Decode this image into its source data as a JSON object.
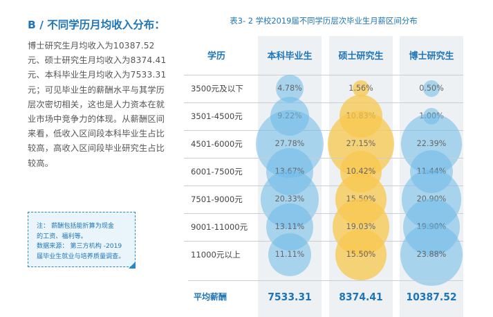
{
  "section_heading": "B / 不同学历月均收入分布：",
  "body_lines": [
    "博士研究生月均收入为10387.52",
    "元、硕士研究生月均收入为8374.41",
    "元、本科毕业生月均收入为7533.31",
    "元；可见毕业生的薪酬水平与其学历",
    "层次密切相关，这也是人力资本在就",
    "业市场中竞争力的体现。从薪酬区间",
    "来看，低收入区间段本科毕业生占比",
    "较高，高收入区间段毕业研究生占比",
    "较高。"
  ],
  "note": {
    "line1": "注：  薪酬包括能折算为现金",
    "line2": "的工资、福利等。",
    "line3": "数据来源：  第三方机构 -2019",
    "line4": "届毕业生就业与培养质量调查。"
  },
  "chart_data": {
    "type": "table",
    "title": "表3- 2  学校2019届不同学历层次毕业生月薪区间分布",
    "row_header": "学历",
    "columns": [
      "本科毕业生",
      "硕士研究生",
      "博士研究生"
    ],
    "rows": [
      "3500元及以下",
      "3501-4500元",
      "4501-6000元",
      "6001-7500元",
      "7501-9000元",
      "9001-11000元",
      "11000元以上"
    ],
    "series": [
      {
        "name": "本科毕业生",
        "values": [
          4.78,
          9.22,
          27.78,
          13.67,
          20.33,
          13.11,
          11.11
        ],
        "labels": [
          "4.78%",
          "9.22%",
          "27.78%",
          "13.67%",
          "20.33%",
          "13.11%",
          "11.11%"
        ]
      },
      {
        "name": "硕士研究生",
        "values": [
          1.56,
          10.83,
          27.15,
          10.42,
          15.5,
          19.03,
          15.5
        ],
        "labels": [
          "1.56%",
          "10.83%",
          "27.15%",
          "10.42%",
          "15.50%",
          "19.03%",
          "15.50%"
        ]
      },
      {
        "name": "博士研究生",
        "values": [
          0.5,
          1.0,
          22.39,
          11.44,
          20.9,
          19.9,
          23.88
        ],
        "labels": [
          "0.50%",
          "1.00%",
          "22.39%",
          "11.44%",
          "20.90%",
          "19.90%",
          "23.88%"
        ]
      }
    ],
    "average_label": "平均薪酬",
    "averages": [
      "7533.31",
      "8374.41",
      "10387.52"
    ],
    "colors": [
      "#6ebae8",
      "#f8c74d",
      "#6ebae8"
    ]
  }
}
